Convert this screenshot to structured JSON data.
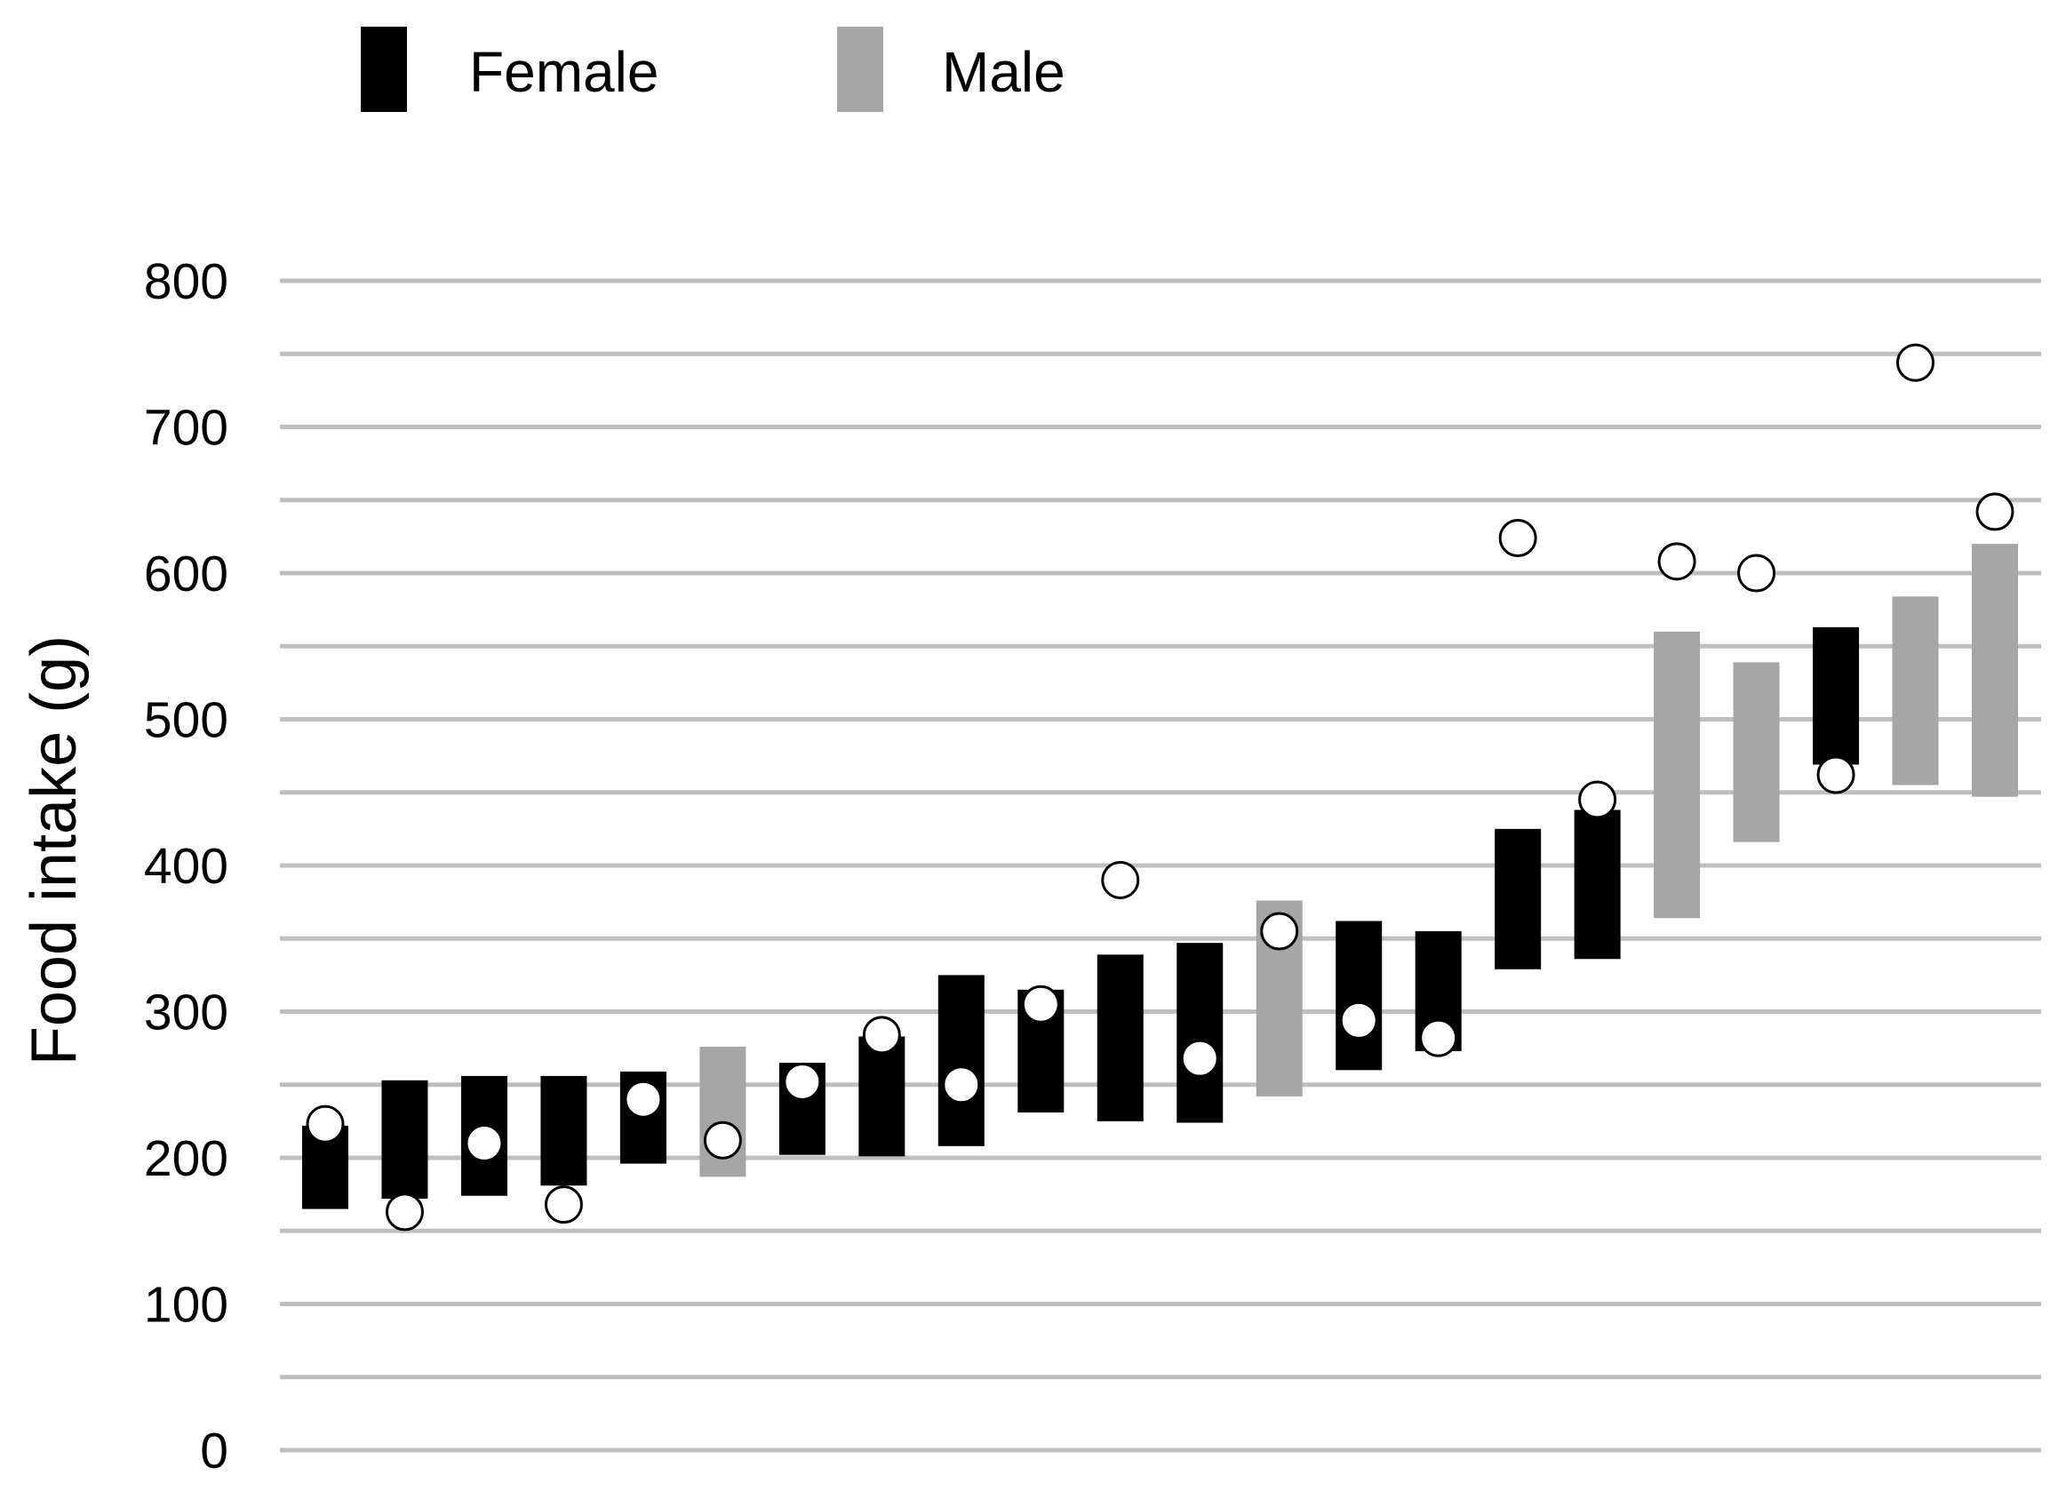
{
  "chart_data": {
    "type": "floating-bar-with-markers",
    "title": "",
    "xlabel": "",
    "ylabel": "Food intake (g)",
    "ylim": [
      0,
      800
    ],
    "yticks": [
      0,
      100,
      200,
      300,
      400,
      500,
      600,
      700,
      800
    ],
    "grid": true,
    "minor_grid_step": 50,
    "legend_position": "top-left",
    "series": [
      {
        "name": "Female",
        "color": "#000000"
      },
      {
        "name": "Male",
        "color": "#a6a6a6"
      }
    ],
    "bars": [
      {
        "sex": "Female",
        "low": 165,
        "high": 222,
        "point": 223
      },
      {
        "sex": "Female",
        "low": 172,
        "high": 253,
        "point": 163
      },
      {
        "sex": "Female",
        "low": 174,
        "high": 256,
        "point": 210
      },
      {
        "sex": "Female",
        "low": 181,
        "high": 256,
        "point": 168
      },
      {
        "sex": "Female",
        "low": 196,
        "high": 259,
        "point": 240
      },
      {
        "sex": "Male",
        "low": 187,
        "high": 276,
        "point": 212
      },
      {
        "sex": "Female",
        "low": 202,
        "high": 265,
        "point": 252
      },
      {
        "sex": "Female",
        "low": 201,
        "high": 283,
        "point": 284
      },
      {
        "sex": "Female",
        "low": 208,
        "high": 325,
        "point": 250
      },
      {
        "sex": "Female",
        "low": 231,
        "high": 315,
        "point": 305
      },
      {
        "sex": "Female",
        "low": 225,
        "high": 339,
        "point": 390
      },
      {
        "sex": "Female",
        "low": 224,
        "high": 347,
        "point": 268
      },
      {
        "sex": "Male",
        "low": 242,
        "high": 376,
        "point": 355
      },
      {
        "sex": "Female",
        "low": 260,
        "high": 362,
        "point": 294
      },
      {
        "sex": "Female",
        "low": 273,
        "high": 355,
        "point": 282
      },
      {
        "sex": "Female",
        "low": 329,
        "high": 425,
        "point": 624
      },
      {
        "sex": "Female",
        "low": 336,
        "high": 438,
        "point": 445
      },
      {
        "sex": "Male",
        "low": 364,
        "high": 560,
        "point": 608
      },
      {
        "sex": "Male",
        "low": 416,
        "high": 539,
        "point": 600
      },
      {
        "sex": "Female",
        "low": 469,
        "high": 563,
        "point": 462
      },
      {
        "sex": "Male",
        "low": 455,
        "high": 584,
        "point": 744
      },
      {
        "sex": "Male",
        "low": 447,
        "high": 620,
        "point": 642
      }
    ]
  }
}
